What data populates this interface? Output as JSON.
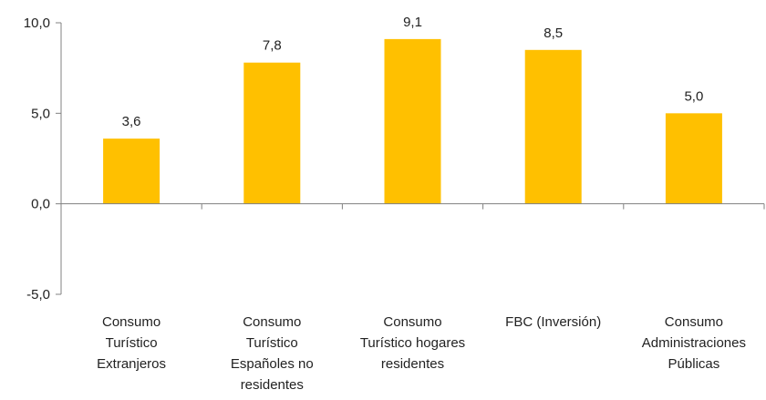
{
  "chart_data": {
    "type": "bar",
    "categories": [
      [
        "Consumo",
        "Turístico",
        "Extranjeros"
      ],
      [
        "Consumo",
        "Turístico",
        "Españoles no",
        "residentes"
      ],
      [
        "Consumo",
        "Turístico hogares",
        "residentes"
      ],
      [
        "FBC (Inversión)"
      ],
      [
        "Consumo",
        "Administraciones",
        "Públicas"
      ]
    ],
    "values": [
      3.6,
      7.8,
      9.1,
      8.5,
      5.0
    ],
    "value_labels": [
      "3,6",
      "7,8",
      "9,1",
      "8,5",
      "5,0"
    ],
    "ylim": [
      -5,
      10
    ],
    "yticks": [
      -5,
      0,
      5,
      10
    ],
    "ytick_labels": [
      "-5,0",
      "0,0",
      "5,0",
      "10,0"
    ],
    "bar_color": "#FFC000",
    "axis_color": "#808080",
    "grid": false,
    "legend": "none"
  }
}
